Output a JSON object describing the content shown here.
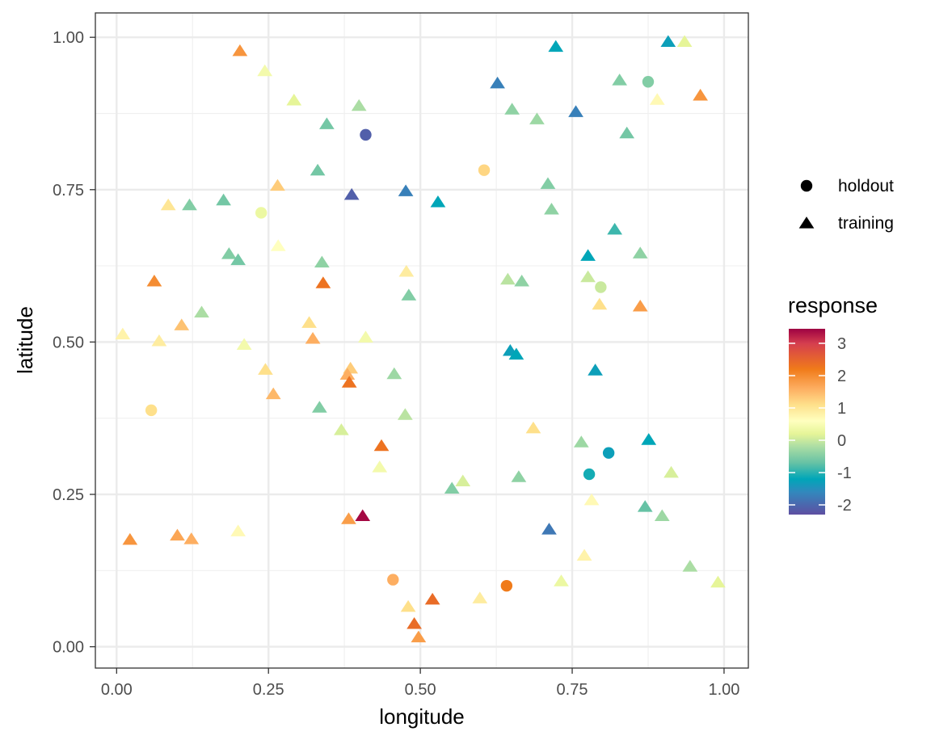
{
  "chart_data": {
    "type": "scatter",
    "title": "",
    "xlabel": "longitude",
    "ylabel": "latitude",
    "xlim": [
      -0.035,
      1.04
    ],
    "ylim": [
      -0.035,
      1.04
    ],
    "xticks": [
      0.0,
      0.25,
      0.5,
      0.75,
      1.0
    ],
    "yticks": [
      0.0,
      0.25,
      0.5,
      0.75,
      1.0
    ],
    "xtick_labels": [
      "0.00",
      "0.25",
      "0.50",
      "0.75",
      "1.00"
    ],
    "ytick_labels": [
      "0.00",
      "0.25",
      "0.50",
      "0.75",
      "1.00"
    ],
    "grid": true,
    "shape_legend": {
      "position": "right",
      "entries": [
        {
          "label": "holdout",
          "shape": "circle"
        },
        {
          "label": "training",
          "shape": "triangle"
        }
      ]
    },
    "color_legend": {
      "title": "response",
      "position": "right",
      "range": [
        -2.3,
        3.45
      ],
      "ticks": [
        3,
        2,
        1,
        0,
        -1,
        -2
      ],
      "tick_labels": [
        "3",
        "2",
        "1",
        "0",
        "-1",
        "-2"
      ],
      "palette": [
        "#5E4FA2",
        "#3288BD",
        "#00A6B8",
        "#66C2A5",
        "#ABDDA4",
        "#E6F598",
        "#FFFFBF",
        "#FEE08B",
        "#FDAE61",
        "#F07B1A",
        "#D53E4F",
        "#9E0142"
      ],
      "palette_values": [
        -2.3,
        -1.6,
        -1.2,
        -0.7,
        -0.2,
        0.2,
        0.6,
        1.1,
        1.6,
        2.2,
        3.0,
        3.45
      ]
    },
    "series": [
      {
        "name": "holdout",
        "shape": "circle",
        "points": [
          {
            "x": 0.41,
            "y": 0.84,
            "value": -2.1
          },
          {
            "x": 0.605,
            "y": 0.782,
            "value": 1.2
          },
          {
            "x": 0.875,
            "y": 0.927,
            "value": -0.5
          },
          {
            "x": 0.238,
            "y": 0.712,
            "value": 0.3
          },
          {
            "x": 0.797,
            "y": 0.59,
            "value": 0.0
          },
          {
            "x": 0.057,
            "y": 0.388,
            "value": 1.1
          },
          {
            "x": 0.81,
            "y": 0.318,
            "value": -1.3
          },
          {
            "x": 0.778,
            "y": 0.283,
            "value": -1.1
          },
          {
            "x": 0.455,
            "y": 0.11,
            "value": 1.6
          },
          {
            "x": 0.642,
            "y": 0.1,
            "value": 2.2
          }
        ]
      },
      {
        "name": "training",
        "shape": "triangle",
        "points": [
          {
            "x": 0.203,
            "y": 0.978,
            "value": 1.9
          },
          {
            "x": 0.244,
            "y": 0.945,
            "value": 0.4
          },
          {
            "x": 0.292,
            "y": 0.897,
            "value": 0.2
          },
          {
            "x": 0.346,
            "y": 0.858,
            "value": -0.6
          },
          {
            "x": 0.399,
            "y": 0.888,
            "value": -0.2
          },
          {
            "x": 0.331,
            "y": 0.782,
            "value": -0.6
          },
          {
            "x": 0.265,
            "y": 0.757,
            "value": 1.3
          },
          {
            "x": 0.085,
            "y": 0.725,
            "value": 1.0
          },
          {
            "x": 0.12,
            "y": 0.725,
            "value": -0.5
          },
          {
            "x": 0.176,
            "y": 0.733,
            "value": -0.6
          },
          {
            "x": 0.387,
            "y": 0.742,
            "value": -2.1
          },
          {
            "x": 0.476,
            "y": 0.748,
            "value": -1.7
          },
          {
            "x": 0.529,
            "y": 0.73,
            "value": -1.2
          },
          {
            "x": 0.627,
            "y": 0.925,
            "value": -1.7
          },
          {
            "x": 0.723,
            "y": 0.985,
            "value": -1.2
          },
          {
            "x": 0.651,
            "y": 0.882,
            "value": -0.4
          },
          {
            "x": 0.692,
            "y": 0.866,
            "value": -0.3
          },
          {
            "x": 0.756,
            "y": 0.878,
            "value": -1.7
          },
          {
            "x": 0.828,
            "y": 0.93,
            "value": -0.5
          },
          {
            "x": 0.908,
            "y": 0.993,
            "value": -1.3
          },
          {
            "x": 0.935,
            "y": 0.993,
            "value": 0.2
          },
          {
            "x": 0.961,
            "y": 0.905,
            "value": 1.9
          },
          {
            "x": 0.89,
            "y": 0.898,
            "value": 0.7
          },
          {
            "x": 0.84,
            "y": 0.843,
            "value": -0.6
          },
          {
            "x": 0.71,
            "y": 0.76,
            "value": -0.5
          },
          {
            "x": 0.716,
            "y": 0.718,
            "value": -0.4
          },
          {
            "x": 0.82,
            "y": 0.685,
            "value": -0.9
          },
          {
            "x": 0.776,
            "y": 0.642,
            "value": -1.2
          },
          {
            "x": 0.862,
            "y": 0.646,
            "value": -0.4
          },
          {
            "x": 0.644,
            "y": 0.603,
            "value": -0.1
          },
          {
            "x": 0.667,
            "y": 0.6,
            "value": -0.4
          },
          {
            "x": 0.776,
            "y": 0.607,
            "value": 0.0
          },
          {
            "x": 0.795,
            "y": 0.562,
            "value": 1.1
          },
          {
            "x": 0.862,
            "y": 0.559,
            "value": 1.8
          },
          {
            "x": 0.062,
            "y": 0.6,
            "value": 2.0
          },
          {
            "x": 0.185,
            "y": 0.645,
            "value": -0.5
          },
          {
            "x": 0.2,
            "y": 0.635,
            "value": -0.6
          },
          {
            "x": 0.266,
            "y": 0.658,
            "value": 0.6
          },
          {
            "x": 0.338,
            "y": 0.631,
            "value": -0.4
          },
          {
            "x": 0.34,
            "y": 0.597,
            "value": 2.3
          },
          {
            "x": 0.477,
            "y": 0.616,
            "value": 0.9
          },
          {
            "x": 0.481,
            "y": 0.577,
            "value": -0.5
          },
          {
            "x": 0.01,
            "y": 0.513,
            "value": 0.8
          },
          {
            "x": 0.07,
            "y": 0.502,
            "value": 0.9
          },
          {
            "x": 0.107,
            "y": 0.528,
            "value": 1.4
          },
          {
            "x": 0.14,
            "y": 0.549,
            "value": -0.2
          },
          {
            "x": 0.21,
            "y": 0.496,
            "value": 0.4
          },
          {
            "x": 0.317,
            "y": 0.532,
            "value": 1.1
          },
          {
            "x": 0.323,
            "y": 0.506,
            "value": 1.6
          },
          {
            "x": 0.41,
            "y": 0.508,
            "value": 0.4
          },
          {
            "x": 0.385,
            "y": 0.457,
            "value": 1.3
          },
          {
            "x": 0.38,
            "y": 0.447,
            "value": 1.6
          },
          {
            "x": 0.383,
            "y": 0.434,
            "value": 2.3
          },
          {
            "x": 0.245,
            "y": 0.455,
            "value": 1.1
          },
          {
            "x": 0.258,
            "y": 0.415,
            "value": 1.5
          },
          {
            "x": 0.334,
            "y": 0.393,
            "value": -0.5
          },
          {
            "x": 0.37,
            "y": 0.356,
            "value": 0.1
          },
          {
            "x": 0.457,
            "y": 0.448,
            "value": -0.3
          },
          {
            "x": 0.475,
            "y": 0.381,
            "value": -0.1
          },
          {
            "x": 0.436,
            "y": 0.33,
            "value": 2.3
          },
          {
            "x": 0.433,
            "y": 0.295,
            "value": 0.4
          },
          {
            "x": 0.552,
            "y": 0.26,
            "value": -0.5
          },
          {
            "x": 0.57,
            "y": 0.272,
            "value": 0.1
          },
          {
            "x": 0.648,
            "y": 0.486,
            "value": -1.3
          },
          {
            "x": 0.658,
            "y": 0.48,
            "value": -1.2
          },
          {
            "x": 0.788,
            "y": 0.454,
            "value": -1.3
          },
          {
            "x": 0.686,
            "y": 0.359,
            "value": 1.1
          },
          {
            "x": 0.765,
            "y": 0.336,
            "value": -0.3
          },
          {
            "x": 0.876,
            "y": 0.34,
            "value": -1.2
          },
          {
            "x": 0.662,
            "y": 0.279,
            "value": -0.4
          },
          {
            "x": 0.913,
            "y": 0.286,
            "value": 0.1
          },
          {
            "x": 0.782,
            "y": 0.241,
            "value": 0.7
          },
          {
            "x": 0.87,
            "y": 0.23,
            "value": -0.7
          },
          {
            "x": 0.898,
            "y": 0.215,
            "value": -0.3
          },
          {
            "x": 0.712,
            "y": 0.193,
            "value": -1.8
          },
          {
            "x": 0.77,
            "y": 0.15,
            "value": 0.8
          },
          {
            "x": 0.732,
            "y": 0.108,
            "value": 0.3
          },
          {
            "x": 0.944,
            "y": 0.132,
            "value": -0.2
          },
          {
            "x": 0.99,
            "y": 0.106,
            "value": 0.2
          },
          {
            "x": 0.022,
            "y": 0.176,
            "value": 1.9
          },
          {
            "x": 0.1,
            "y": 0.183,
            "value": 1.7
          },
          {
            "x": 0.123,
            "y": 0.177,
            "value": 1.6
          },
          {
            "x": 0.2,
            "y": 0.19,
            "value": 0.7
          },
          {
            "x": 0.382,
            "y": 0.21,
            "value": 1.8
          },
          {
            "x": 0.405,
            "y": 0.215,
            "value": 3.4
          },
          {
            "x": 0.48,
            "y": 0.066,
            "value": 1.1
          },
          {
            "x": 0.52,
            "y": 0.078,
            "value": 2.4
          },
          {
            "x": 0.598,
            "y": 0.08,
            "value": 0.9
          },
          {
            "x": 0.49,
            "y": 0.038,
            "value": 2.4
          },
          {
            "x": 0.497,
            "y": 0.016,
            "value": 1.8
          }
        ]
      }
    ]
  }
}
